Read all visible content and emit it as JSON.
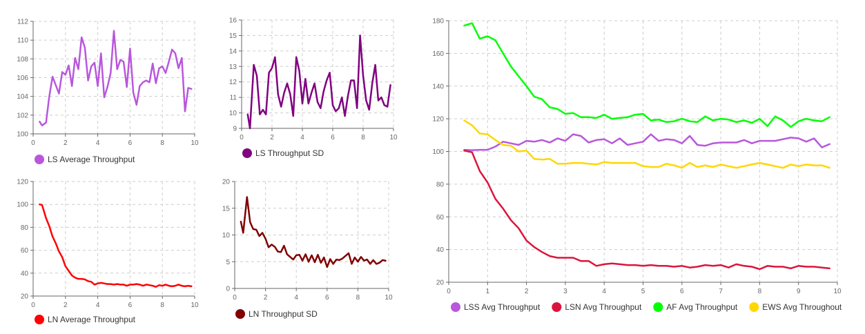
{
  "chart_data": [
    {
      "type": "line",
      "xlim": [
        0,
        10
      ],
      "ylim": [
        100,
        112
      ],
      "xticks": [
        0,
        2,
        4,
        6,
        8,
        10
      ],
      "yticks": [
        100,
        102,
        104,
        106,
        108,
        110,
        112
      ],
      "grid": true,
      "legend_position": "bottom-left",
      "series": [
        {
          "name": "LS Average Throughput",
          "color": "#b857dc",
          "x": [
            0.4,
            0.55,
            0.8,
            1.0,
            1.2,
            1.4,
            1.6,
            1.8,
            2.0,
            2.2,
            2.4,
            2.6,
            2.8,
            3.0,
            3.2,
            3.4,
            3.6,
            3.8,
            4.0,
            4.2,
            4.4,
            4.6,
            4.8,
            5.0,
            5.2,
            5.4,
            5.6,
            5.8,
            6.0,
            6.2,
            6.4,
            6.6,
            6.8,
            7.0,
            7.2,
            7.4,
            7.6,
            7.8,
            8.0,
            8.2,
            8.4,
            8.6,
            8.8,
            9.0,
            9.2,
            9.4,
            9.6,
            9.8
          ],
          "y": [
            101.3,
            100.9,
            101.2,
            104.0,
            106.1,
            105.2,
            104.3,
            106.6,
            106.3,
            107.3,
            105.1,
            108.1,
            106.9,
            110.3,
            109.2,
            105.7,
            107.2,
            107.6,
            105.1,
            108.6,
            103.9,
            105.0,
            106.5,
            111.0,
            106.9,
            107.9,
            107.7,
            105.0,
            109.1,
            104.4,
            103.1,
            105.1,
            105.5,
            105.7,
            105.5,
            107.5,
            105.4,
            107.0,
            107.2,
            106.5,
            107.7,
            109.0,
            108.6,
            107.0,
            108.1,
            102.4,
            104.9,
            104.8
          ]
        }
      ]
    },
    {
      "type": "line",
      "xlim": [
        0,
        10
      ],
      "ylim": [
        9,
        16
      ],
      "xticks": [
        0,
        2,
        4,
        6,
        8,
        10
      ],
      "yticks": [
        9,
        10,
        11,
        12,
        13,
        14,
        15,
        16
      ],
      "grid": true,
      "legend_position": "bottom-left",
      "series": [
        {
          "name": "LS Throughput SD",
          "color": "#800080",
          "x": [
            0.4,
            0.55,
            0.8,
            1.0,
            1.2,
            1.4,
            1.6,
            1.8,
            2.0,
            2.2,
            2.4,
            2.6,
            2.8,
            3.0,
            3.2,
            3.4,
            3.6,
            3.8,
            4.0,
            4.2,
            4.4,
            4.6,
            4.8,
            5.0,
            5.2,
            5.4,
            5.6,
            5.8,
            6.0,
            6.2,
            6.4,
            6.6,
            6.8,
            7.0,
            7.2,
            7.4,
            7.6,
            7.8,
            8.0,
            8.2,
            8.4,
            8.6,
            8.8,
            9.0,
            9.2,
            9.4,
            9.6,
            9.8
          ],
          "y": [
            9.9,
            9.0,
            13.1,
            12.4,
            9.9,
            10.2,
            9.9,
            12.6,
            12.9,
            13.6,
            11.2,
            10.4,
            11.3,
            11.9,
            11.2,
            9.8,
            13.6,
            12.7,
            10.6,
            12.2,
            10.6,
            11.3,
            11.9,
            10.7,
            10.3,
            11.4,
            12.1,
            12.6,
            10.5,
            10.1,
            10.3,
            11.0,
            9.8,
            11.1,
            12.1,
            12.1,
            10.3,
            15.0,
            12.4,
            10.8,
            10.2,
            11.9,
            13.1,
            10.8,
            11.0,
            10.5,
            10.4,
            11.8
          ]
        }
      ]
    },
    {
      "type": "line",
      "xlim": [
        0,
        10
      ],
      "ylim": [
        20,
        120
      ],
      "xticks": [
        0,
        2,
        4,
        6,
        8,
        10
      ],
      "yticks": [
        20,
        40,
        60,
        80,
        100,
        120
      ],
      "grid": true,
      "legend_position": "bottom-left",
      "series": [
        {
          "name": "LN Average Throughput",
          "color": "#ff0000",
          "x": [
            0.4,
            0.55,
            0.8,
            1.0,
            1.2,
            1.4,
            1.6,
            1.8,
            2.0,
            2.2,
            2.4,
            2.6,
            2.8,
            3.0,
            3.2,
            3.4,
            3.6,
            3.8,
            4.0,
            4.2,
            4.4,
            4.6,
            4.8,
            5.0,
            5.2,
            5.4,
            5.6,
            5.8,
            6.0,
            6.2,
            6.4,
            6.6,
            6.8,
            7.0,
            7.2,
            7.4,
            7.6,
            7.8,
            8.0,
            8.2,
            8.4,
            8.6,
            8.8,
            9.0,
            9.2,
            9.4,
            9.6,
            9.8
          ],
          "y": [
            100,
            99.5,
            88,
            81,
            72,
            66,
            59,
            54,
            46,
            42,
            38,
            36,
            35,
            35,
            34.5,
            33,
            32.5,
            30,
            31,
            31.5,
            31,
            30.5,
            30.5,
            30,
            30.5,
            30,
            30,
            29,
            30,
            30,
            30.5,
            30,
            29,
            30,
            29.5,
            29,
            28,
            29.5,
            29,
            30,
            29,
            28.5,
            29,
            30,
            29,
            28.5,
            29,
            28.5
          ]
        }
      ]
    },
    {
      "type": "line",
      "xlim": [
        0,
        10
      ],
      "ylim": [
        0,
        20
      ],
      "xticks": [
        0,
        2,
        4,
        6,
        8,
        10
      ],
      "yticks": [
        0,
        5,
        10,
        15,
        20
      ],
      "grid": true,
      "legend_position": "bottom-left",
      "series": [
        {
          "name": "LN Throughput SD",
          "color": "#800000",
          "x": [
            0.4,
            0.55,
            0.8,
            1.0,
            1.2,
            1.4,
            1.6,
            1.8,
            2.0,
            2.2,
            2.4,
            2.6,
            2.8,
            3.0,
            3.2,
            3.4,
            3.6,
            3.8,
            4.0,
            4.2,
            4.4,
            4.6,
            4.8,
            5.0,
            5.2,
            5.4,
            5.6,
            5.8,
            6.0,
            6.2,
            6.4,
            6.6,
            6.8,
            7.0,
            7.2,
            7.4,
            7.6,
            7.8,
            8.0,
            8.2,
            8.4,
            8.6,
            8.8,
            9.0,
            9.2,
            9.4,
            9.6,
            9.8
          ],
          "y": [
            12.5,
            10.4,
            17.1,
            12.4,
            11.1,
            11.0,
            9.8,
            10.4,
            9.3,
            7.7,
            8.2,
            7.8,
            6.9,
            6.8,
            8.0,
            6.4,
            5.9,
            5.4,
            6.2,
            6.3,
            5.2,
            6.4,
            5.0,
            6.2,
            4.9,
            6.3,
            4.8,
            5.8,
            4.0,
            5.5,
            4.6,
            5.4,
            5.3,
            5.6,
            6.1,
            6.6,
            4.6,
            5.8,
            5.0,
            5.9,
            5.2,
            5.4,
            4.6,
            5.3,
            4.6,
            4.8,
            5.3,
            5.2
          ]
        }
      ]
    },
    {
      "type": "line",
      "xlim": [
        0,
        10
      ],
      "ylim": [
        20,
        180
      ],
      "xticks": [
        0,
        1,
        2,
        3,
        4,
        5,
        6,
        7,
        8,
        9,
        10
      ],
      "yticks": [
        20,
        40,
        60,
        80,
        100,
        120,
        140,
        160,
        180
      ],
      "grid": true,
      "legend_position": "bottom",
      "series": [
        {
          "name": "LSS Avg Throughput",
          "color": "#b857dc",
          "x": [
            0.4,
            0.6,
            0.8,
            1.0,
            1.2,
            1.4,
            1.6,
            1.8,
            2.0,
            2.2,
            2.4,
            2.6,
            2.8,
            3.0,
            3.2,
            3.4,
            3.6,
            3.8,
            4.0,
            4.2,
            4.4,
            4.6,
            4.8,
            5.0,
            5.2,
            5.4,
            5.6,
            5.8,
            6.0,
            6.2,
            6.4,
            6.6,
            6.8,
            7.0,
            7.2,
            7.4,
            7.6,
            7.8,
            8.0,
            8.2,
            8.4,
            8.6,
            8.8,
            9.0,
            9.2,
            9.4,
            9.6,
            9.8
          ],
          "y": [
            101,
            100.8,
            101,
            101,
            103,
            106,
            105,
            104,
            106.5,
            106,
            107,
            105.5,
            108,
            106.5,
            110.5,
            109.5,
            105.5,
            107,
            107.5,
            105,
            108,
            104,
            105,
            106,
            110.5,
            106.5,
            107.5,
            107,
            105,
            109.5,
            104,
            103.5,
            105,
            105.5,
            105.5,
            105.5,
            107,
            105,
            106.5,
            106.5,
            106.5,
            107.5,
            108.5,
            108,
            106,
            108,
            102.5,
            104.5
          ]
        },
        {
          "name": "LSN Avg Throughput",
          "color": "#dc143c",
          "x": [
            0.4,
            0.6,
            0.8,
            1.0,
            1.2,
            1.4,
            1.6,
            1.8,
            2.0,
            2.2,
            2.4,
            2.6,
            2.8,
            3.0,
            3.2,
            3.4,
            3.6,
            3.8,
            4.0,
            4.2,
            4.4,
            4.6,
            4.8,
            5.0,
            5.2,
            5.4,
            5.6,
            5.8,
            6.0,
            6.2,
            6.4,
            6.6,
            6.8,
            7.0,
            7.2,
            7.4,
            7.6,
            7.8,
            8.0,
            8.2,
            8.4,
            8.6,
            8.8,
            9.0,
            9.2,
            9.4,
            9.6,
            9.8
          ],
          "y": [
            100.5,
            99.5,
            88,
            81,
            71,
            65,
            58,
            53,
            45.5,
            41.5,
            38.5,
            36,
            35,
            35,
            35,
            33,
            33,
            30,
            31,
            31.5,
            31,
            30.5,
            30.5,
            30,
            30.5,
            30,
            30,
            29.5,
            30,
            29,
            29.5,
            30.5,
            30,
            30.5,
            29,
            31,
            30,
            29.5,
            28,
            30,
            29.5,
            29.5,
            28.5,
            30,
            29.5,
            29.5,
            29,
            28.5
          ]
        },
        {
          "name": "AF Avg Throughput",
          "color": "#00ff00",
          "x": [
            0.4,
            0.6,
            0.8,
            1.0,
            1.2,
            1.4,
            1.6,
            1.8,
            2.0,
            2.2,
            2.4,
            2.6,
            2.8,
            3.0,
            3.2,
            3.4,
            3.6,
            3.8,
            4.0,
            4.2,
            4.4,
            4.6,
            4.8,
            5.0,
            5.2,
            5.4,
            5.6,
            5.8,
            6.0,
            6.2,
            6.4,
            6.6,
            6.8,
            7.0,
            7.2,
            7.4,
            7.6,
            7.8,
            8.0,
            8.2,
            8.4,
            8.6,
            8.8,
            9.0,
            9.2,
            9.4,
            9.6,
            9.8
          ],
          "y": [
            177,
            178.5,
            169,
            170.5,
            168,
            160,
            152,
            146,
            140,
            133.5,
            132,
            127,
            126,
            123,
            123.5,
            121,
            121,
            120.5,
            122.5,
            120,
            120.5,
            121,
            122.5,
            123,
            119,
            119.5,
            118,
            118.5,
            120,
            118.5,
            118,
            121.5,
            119,
            120,
            119.5,
            118,
            119,
            117.5,
            120,
            115.5,
            121.5,
            119,
            115,
            118.5,
            120,
            119,
            118.5,
            121
          ]
        },
        {
          "name": "EWS Avg Throughout",
          "color": "#ffd700",
          "x": [
            0.4,
            0.6,
            0.8,
            1.0,
            1.2,
            1.4,
            1.6,
            1.8,
            2.0,
            2.2,
            2.4,
            2.6,
            2.8,
            3.0,
            3.2,
            3.4,
            3.6,
            3.8,
            4.0,
            4.2,
            4.4,
            4.6,
            4.8,
            5.0,
            5.2,
            5.4,
            5.6,
            5.8,
            6.0,
            6.2,
            6.4,
            6.6,
            6.8,
            7.0,
            7.2,
            7.4,
            7.6,
            7.8,
            8.0,
            8.2,
            8.4,
            8.6,
            8.8,
            9.0,
            9.2,
            9.4,
            9.6,
            9.8
          ],
          "y": [
            119,
            116,
            111,
            110.5,
            107,
            104,
            103.5,
            100,
            100.5,
            95.5,
            95,
            95.5,
            92.5,
            92.5,
            93,
            93,
            92.5,
            92,
            93.5,
            93,
            93,
            93,
            93,
            91,
            90.5,
            90.5,
            92.5,
            91.5,
            90,
            93,
            90.5,
            91.5,
            90.5,
            92,
            91,
            90,
            91,
            92,
            93,
            92,
            91,
            90,
            92,
            91,
            92,
            91.5,
            91.5,
            90
          ]
        }
      ]
    }
  ]
}
